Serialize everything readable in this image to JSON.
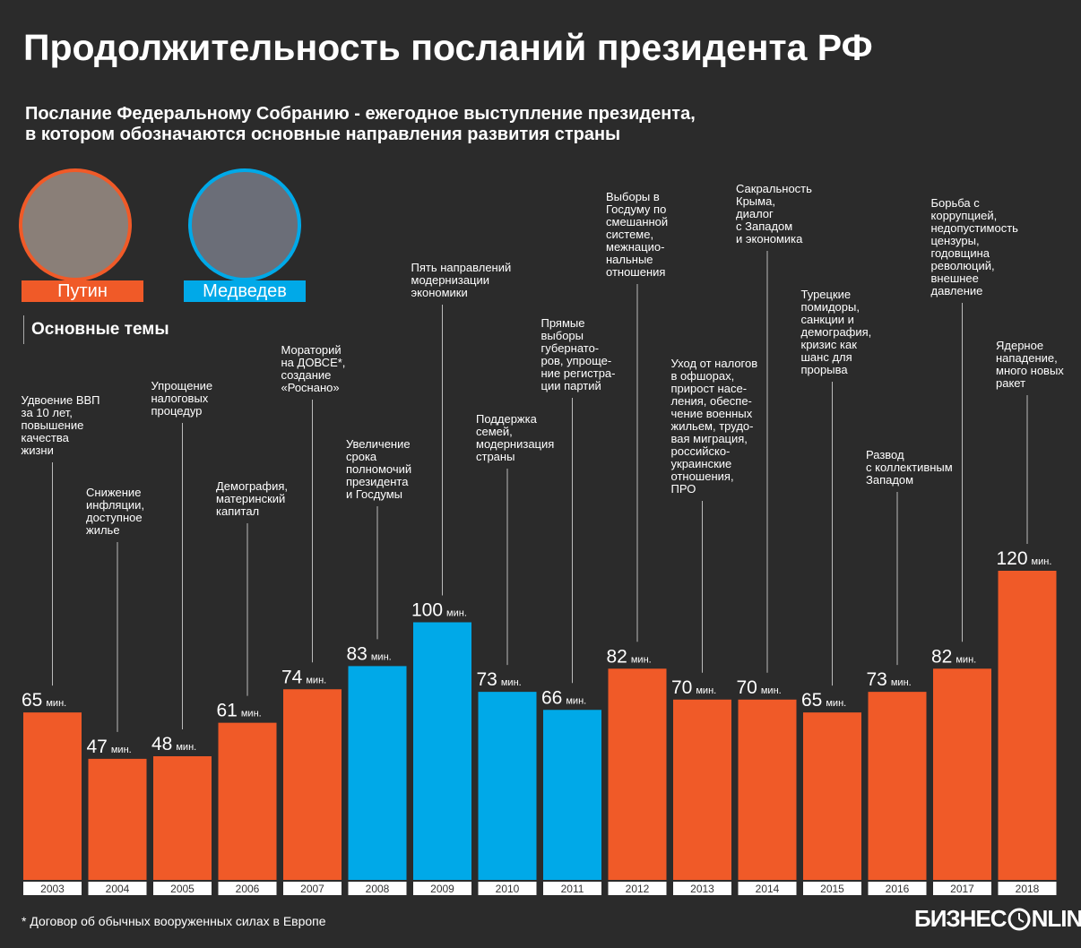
{
  "chart_data": {
    "type": "bar",
    "title": "Продолжительность посланий президента РФ",
    "subtitle": "Послание Федеральному Собранию - ежегодное выступление президента,\nв котором обозначаются основные направления развития страны",
    "topics_label": "Основные темы",
    "unit": "мин.",
    "categories": [
      "2003",
      "2004",
      "2005",
      "2006",
      "2007",
      "2008",
      "2009",
      "2010",
      "2011",
      "2012",
      "2013",
      "2014",
      "2015",
      "2016",
      "2017",
      "2018"
    ],
    "series": [
      {
        "name": "Путин",
        "color": "#f05a28",
        "values": [
          65,
          47,
          48,
          61,
          74,
          null,
          null,
          null,
          null,
          82,
          70,
          70,
          65,
          73,
          82,
          120
        ]
      },
      {
        "name": "Медведев",
        "color": "#00a9e8",
        "values": [
          null,
          null,
          null,
          null,
          null,
          83,
          100,
          73,
          66,
          null,
          null,
          null,
          null,
          null,
          null,
          null
        ]
      }
    ],
    "annotations": [
      "Удвоение ВВП\nза 10 лет,\nповышение\nкачества\nжизни",
      "Снижение\nинфляции,\nдоступное\nжилье",
      "Упрощение\nналоговых\nпроцедур",
      "Демография,\nматеринский\nкапитал",
      "Мораторий\nна ДОВСЕ*,\nсоздание\n«Роснано»",
      "Увеличение\nсрока\nполномочий\nпрезидента\nи Госдумы",
      "Пять направлений\nмодернизации\nэкономики",
      "Поддержка\nсемей,\nмодернизация\nстраны",
      "Прямые\nвыборы\nгубернато-\nров, упроще-\nние регистра-\nции партий",
      "Выборы в\nГосдуму по\nсмешанной\nсистеме,\nмежнацио-\nнальные\nотношения",
      "Уход от налогов\nв офшорах,\nприрост насе-\nления, обеспе-\nчение военных\nжильем, трудо-\nвая миграция,\nроссийско-\nукраинские\nотношения,\nПРО",
      "Сакральность\nКрыма,\nдиалог\nс Западом\nи экономика",
      "Турецкие\nпомидоры,\nсанкции и\nдемография,\nкризис как\nшанс для\nпрорыва",
      "Развод\nс коллективным\nЗападом",
      "Борьба с\nкоррупцией,\nнедопустимость\nцензуры,\nгодовщина\nреволюций,\nвнешнее\nдавление",
      "Ядерное\nнападение,\nмного новых\nракет"
    ],
    "ylim": [
      0,
      120
    ],
    "footnote": "* Договор об обычных вооруженных силах в Европе",
    "logo": [
      "БИЗНЕС",
      "NLINE"
    ]
  }
}
